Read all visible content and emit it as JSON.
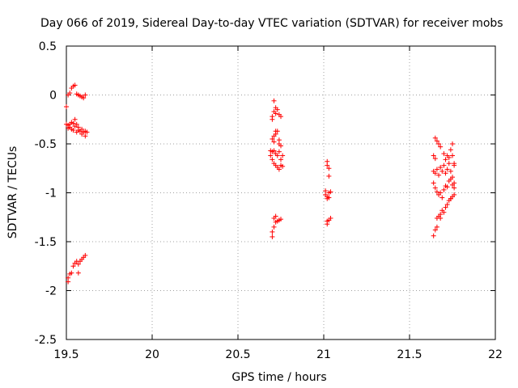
{
  "chart_data": {
    "type": "scatter",
    "title": "Day 066 of 2019, Sidereal Day-to-day VTEC variation (SDTVAR) for receiver mobs",
    "xlabel": "GPS time / hours",
    "ylabel": "SDTVAR / TECUs",
    "xlim": [
      19.5,
      22
    ],
    "ylim": [
      -2.5,
      0.5
    ],
    "xticks": [
      19.5,
      20,
      20.5,
      21,
      21.5,
      22
    ],
    "xtick_labels": [
      "19.5",
      "20",
      "20.5",
      "21",
      "21.5",
      "22"
    ],
    "yticks": [
      0.5,
      0,
      -0.5,
      -1,
      -1.5,
      -2,
      -2.5
    ],
    "ytick_labels": [
      "0.5",
      "0",
      "-0.5",
      "-1",
      "-1.5",
      "-2",
      "-2.5"
    ],
    "grid": true,
    "marker": "+",
    "color": "#ff0000",
    "series": [
      {
        "name": "SDTVAR",
        "points": [
          [
            19.5,
            -0.12
          ],
          [
            19.51,
            0.0
          ],
          [
            19.52,
            0.02
          ],
          [
            19.53,
            0.07
          ],
          [
            19.54,
            0.09
          ],
          [
            19.55,
            0.1
          ],
          [
            19.56,
            0.01
          ],
          [
            19.57,
            0.0
          ],
          [
            19.58,
            -0.01
          ],
          [
            19.59,
            -0.02
          ],
          [
            19.6,
            -0.03
          ],
          [
            19.61,
            0.0
          ],
          [
            19.5,
            -0.3
          ],
          [
            19.51,
            -0.31
          ],
          [
            19.51,
            -0.34
          ],
          [
            19.52,
            -0.3
          ],
          [
            19.52,
            -0.33
          ],
          [
            19.53,
            -0.28
          ],
          [
            19.53,
            -0.35
          ],
          [
            19.54,
            -0.29
          ],
          [
            19.54,
            -0.36
          ],
          [
            19.55,
            -0.25
          ],
          [
            19.55,
            -0.32
          ],
          [
            19.56,
            -0.3
          ],
          [
            19.56,
            -0.38
          ],
          [
            19.57,
            -0.33
          ],
          [
            19.57,
            -0.36
          ],
          [
            19.58,
            -0.37
          ],
          [
            19.59,
            -0.4
          ],
          [
            19.59,
            -0.35
          ],
          [
            19.6,
            -0.38
          ],
          [
            19.61,
            -0.42
          ],
          [
            19.61,
            -0.37
          ],
          [
            19.62,
            -0.38
          ],
          [
            19.51,
            -1.91
          ],
          [
            19.51,
            -1.87
          ],
          [
            19.52,
            -1.83
          ],
          [
            19.53,
            -1.82
          ],
          [
            19.54,
            -1.75
          ],
          [
            19.55,
            -1.72
          ],
          [
            19.56,
            -1.7
          ],
          [
            19.57,
            -1.82
          ],
          [
            19.57,
            -1.73
          ],
          [
            19.58,
            -1.7
          ],
          [
            19.59,
            -1.68
          ],
          [
            19.6,
            -1.66
          ],
          [
            19.61,
            -1.64
          ],
          [
            20.7,
            -0.25
          ],
          [
            20.7,
            -0.22
          ],
          [
            20.71,
            -0.06
          ],
          [
            20.71,
            -0.17
          ],
          [
            20.72,
            -0.13
          ],
          [
            20.72,
            -0.19
          ],
          [
            20.73,
            -0.15
          ],
          [
            20.74,
            -0.2
          ],
          [
            20.75,
            -0.22
          ],
          [
            20.7,
            -0.45
          ],
          [
            20.71,
            -0.48
          ],
          [
            20.71,
            -0.42
          ],
          [
            20.72,
            -0.4
          ],
          [
            20.72,
            -0.37
          ],
          [
            20.73,
            -0.37
          ],
          [
            20.74,
            -0.46
          ],
          [
            20.74,
            -0.5
          ],
          [
            20.75,
            -0.52
          ],
          [
            20.69,
            -0.57
          ],
          [
            20.69,
            -0.62
          ],
          [
            20.7,
            -0.58
          ],
          [
            20.7,
            -0.66
          ],
          [
            20.71,
            -0.57
          ],
          [
            20.71,
            -0.7
          ],
          [
            20.72,
            -0.6
          ],
          [
            20.72,
            -0.72
          ],
          [
            20.73,
            -0.62
          ],
          [
            20.73,
            -0.74
          ],
          [
            20.74,
            -0.58
          ],
          [
            20.74,
            -0.76
          ],
          [
            20.75,
            -0.66
          ],
          [
            20.75,
            -0.72
          ],
          [
            20.76,
            -0.62
          ],
          [
            20.76,
            -0.73
          ],
          [
            20.7,
            -1.45
          ],
          [
            20.7,
            -1.4
          ],
          [
            20.71,
            -1.35
          ],
          [
            20.71,
            -1.26
          ],
          [
            20.72,
            -1.3
          ],
          [
            20.72,
            -1.24
          ],
          [
            20.73,
            -1.29
          ],
          [
            20.74,
            -1.28
          ],
          [
            20.75,
            -1.27
          ],
          [
            21.02,
            -0.68
          ],
          [
            21.02,
            -0.72
          ],
          [
            21.03,
            -0.75
          ],
          [
            21.03,
            -0.83
          ],
          [
            21.01,
            -0.98
          ],
          [
            21.01,
            -1.02
          ],
          [
            21.02,
            -1.04
          ],
          [
            21.02,
            -1.06
          ],
          [
            21.03,
            -1.0
          ],
          [
            21.03,
            -1.05
          ],
          [
            21.04,
            -0.99
          ],
          [
            21.02,
            -1.29
          ],
          [
            21.02,
            -1.32
          ],
          [
            21.03,
            -1.28
          ],
          [
            21.04,
            -1.26
          ],
          [
            21.65,
            -0.44
          ],
          [
            21.66,
            -0.47
          ],
          [
            21.67,
            -0.5
          ],
          [
            21.68,
            -0.53
          ],
          [
            21.64,
            -0.62
          ],
          [
            21.65,
            -0.65
          ],
          [
            21.7,
            -0.6
          ],
          [
            21.71,
            -0.66
          ],
          [
            21.72,
            -0.62
          ],
          [
            21.73,
            -0.64
          ],
          [
            21.74,
            -0.56
          ],
          [
            21.75,
            -0.5
          ],
          [
            21.75,
            -0.62
          ],
          [
            21.76,
            -0.7
          ],
          [
            21.64,
            -0.78
          ],
          [
            21.65,
            -0.8
          ],
          [
            21.66,
            -0.76
          ],
          [
            21.67,
            -0.82
          ],
          [
            21.68,
            -0.74
          ],
          [
            21.69,
            -0.78
          ],
          [
            21.7,
            -0.72
          ],
          [
            21.71,
            -0.8
          ],
          [
            21.72,
            -0.76
          ],
          [
            21.73,
            -0.7
          ],
          [
            21.74,
            -0.78
          ],
          [
            21.75,
            -0.84
          ],
          [
            21.76,
            -0.72
          ],
          [
            21.76,
            -0.9
          ],
          [
            21.64,
            -0.9
          ],
          [
            21.65,
            -0.95
          ],
          [
            21.66,
            -0.99
          ],
          [
            21.67,
            -1.02
          ],
          [
            21.68,
            -1.0
          ],
          [
            21.69,
            -1.05
          ],
          [
            21.7,
            -0.97
          ],
          [
            21.71,
            -0.93
          ],
          [
            21.72,
            -0.94
          ],
          [
            21.73,
            -0.88
          ],
          [
            21.74,
            -0.86
          ],
          [
            21.75,
            -0.92
          ],
          [
            21.76,
            -0.95
          ],
          [
            21.74,
            -1.06
          ],
          [
            21.75,
            -1.04
          ],
          [
            21.76,
            -1.02
          ],
          [
            21.64,
            -1.44
          ],
          [
            21.65,
            -1.38
          ],
          [
            21.66,
            -1.35
          ],
          [
            21.66,
            -1.26
          ],
          [
            21.67,
            -1.24
          ],
          [
            21.68,
            -1.26
          ],
          [
            21.68,
            -1.22
          ],
          [
            21.69,
            -1.18
          ],
          [
            21.7,
            -1.2
          ],
          [
            21.71,
            -1.15
          ],
          [
            21.72,
            -1.12
          ],
          [
            21.73,
            -1.08
          ],
          [
            21.74,
            -1.06
          ]
        ]
      }
    ]
  }
}
